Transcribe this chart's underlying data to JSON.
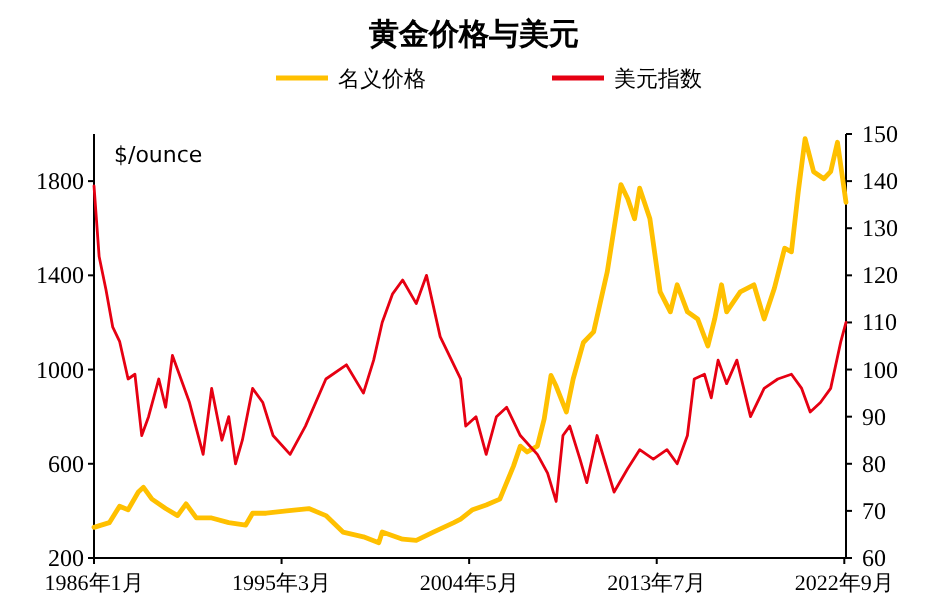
{
  "chart_data": {
    "type": "line",
    "title": "黄金价格与美元",
    "ylabel": "$/ounce",
    "legend": "top",
    "grid": false,
    "xlim": [
      "1986-01",
      "2022-10"
    ],
    "xticks": [
      {
        "value": "1986-01",
        "label": "1986年1月"
      },
      {
        "value": "1995-03",
        "label": "1995年3月"
      },
      {
        "value": "2004-05",
        "label": "2004年5月"
      },
      {
        "value": "2013-07",
        "label": "2013年7月"
      },
      {
        "value": "2022-09",
        "label": "2022年9月"
      }
    ],
    "ylim": [
      200,
      2000
    ],
    "yticks": [
      200,
      600,
      1000,
      1400,
      1800
    ],
    "y2lim": [
      60,
      150
    ],
    "y2ticks": [
      60,
      70,
      80,
      90,
      100,
      110,
      120,
      130,
      140,
      150
    ],
    "series": [
      {
        "name": "名义价格",
        "color": "#ffc000",
        "x": [
          "1986-01",
          "1986-10",
          "1987-04",
          "1987-09",
          "1988-03",
          "1988-06",
          "1988-11",
          "1989-07",
          "1990-02",
          "1990-07",
          "1991-01",
          "1991-10",
          "1992-08",
          "1993-06",
          "1993-10",
          "1994-06",
          "1995-06",
          "1996-07",
          "1997-05",
          "1998-03",
          "1999-03",
          "1999-12",
          "2000-02",
          "2001-02",
          "2001-10",
          "2002-08",
          "2003-08",
          "2003-12",
          "2004-07",
          "2005-03",
          "2005-11",
          "2006-07",
          "2006-11",
          "2007-03",
          "2007-09",
          "2008-01",
          "2008-05",
          "2008-08",
          "2009-02",
          "2009-06",
          "2009-12",
          "2010-06",
          "2011-02",
          "2011-10",
          "2012-02",
          "2012-06",
          "2012-09",
          "2013-03",
          "2013-09",
          "2014-03",
          "2014-07",
          "2015-01",
          "2015-07",
          "2016-01",
          "2016-05",
          "2016-09",
          "2016-12",
          "2017-08",
          "2018-04",
          "2018-10",
          "2019-04",
          "2019-10",
          "2020-02",
          "2020-06",
          "2020-10",
          "2021-03",
          "2021-09",
          "2022-01",
          "2022-05",
          "2022-10"
        ],
        "values": [
          330,
          350,
          420,
          405,
          480,
          500,
          450,
          410,
          380,
          430,
          370,
          370,
          350,
          340,
          390,
          390,
          400,
          410,
          380,
          310,
          290,
          265,
          310,
          280,
          275,
          310,
          350,
          365,
          405,
          425,
          450,
          590,
          675,
          650,
          675,
          790,
          975,
          930,
          820,
          960,
          1115,
          1160,
          1415,
          1785,
          1725,
          1640,
          1770,
          1640,
          1330,
          1245,
          1360,
          1245,
          1215,
          1100,
          1215,
          1360,
          1245,
          1330,
          1360,
          1215,
          1345,
          1515,
          1500,
          1755,
          1980,
          1840,
          1810,
          1840,
          1965,
          1710
        ]
      },
      {
        "name": "美元指数",
        "color": "#e60012",
        "axis": "y2",
        "x": [
          "1986-01",
          "1986-04",
          "1986-08",
          "1986-12",
          "1987-04",
          "1987-09",
          "1988-01",
          "1988-05",
          "1988-09",
          "1989-03",
          "1989-07",
          "1989-11",
          "1990-03",
          "1990-09",
          "1991-05",
          "1991-10",
          "1992-04",
          "1992-08",
          "1992-12",
          "1993-04",
          "1993-10",
          "1994-04",
          "1994-10",
          "1995-08",
          "1996-05",
          "1997-05",
          "1998-05",
          "1999-03",
          "1999-09",
          "2000-02",
          "2000-08",
          "2001-02",
          "2001-10",
          "2002-04",
          "2002-12",
          "2003-12",
          "2004-03",
          "2004-09",
          "2005-03",
          "2005-09",
          "2006-03",
          "2006-11",
          "2007-09",
          "2008-03",
          "2008-08",
          "2008-12",
          "2009-04",
          "2009-10",
          "2010-02",
          "2010-08",
          "2011-06",
          "2012-02",
          "2012-09",
          "2013-05",
          "2014-01",
          "2014-07",
          "2015-01",
          "2015-05",
          "2015-11",
          "2016-03",
          "2016-07",
          "2016-12",
          "2017-06",
          "2018-02",
          "2018-10",
          "2019-06",
          "2020-02",
          "2020-08",
          "2021-01",
          "2021-07",
          "2022-01",
          "2022-07",
          "2022-10"
        ],
        "values": [
          139,
          124,
          117,
          109,
          106,
          98,
          99,
          86,
          90,
          98,
          92,
          103,
          99,
          93,
          82,
          96,
          85,
          90,
          80,
          85,
          96,
          93,
          86,
          82,
          88,
          98,
          101,
          95,
          102,
          110,
          116,
          119,
          114,
          120,
          107,
          98,
          88,
          90,
          82,
          90,
          92,
          86,
          82,
          78,
          72,
          86,
          88,
          81,
          76,
          86,
          74,
          79,
          83,
          81,
          83,
          80,
          86,
          98,
          99,
          94,
          102,
          97,
          102,
          90,
          96,
          98,
          99,
          96,
          91,
          93,
          96,
          106,
          110
        ]
      }
    ]
  }
}
